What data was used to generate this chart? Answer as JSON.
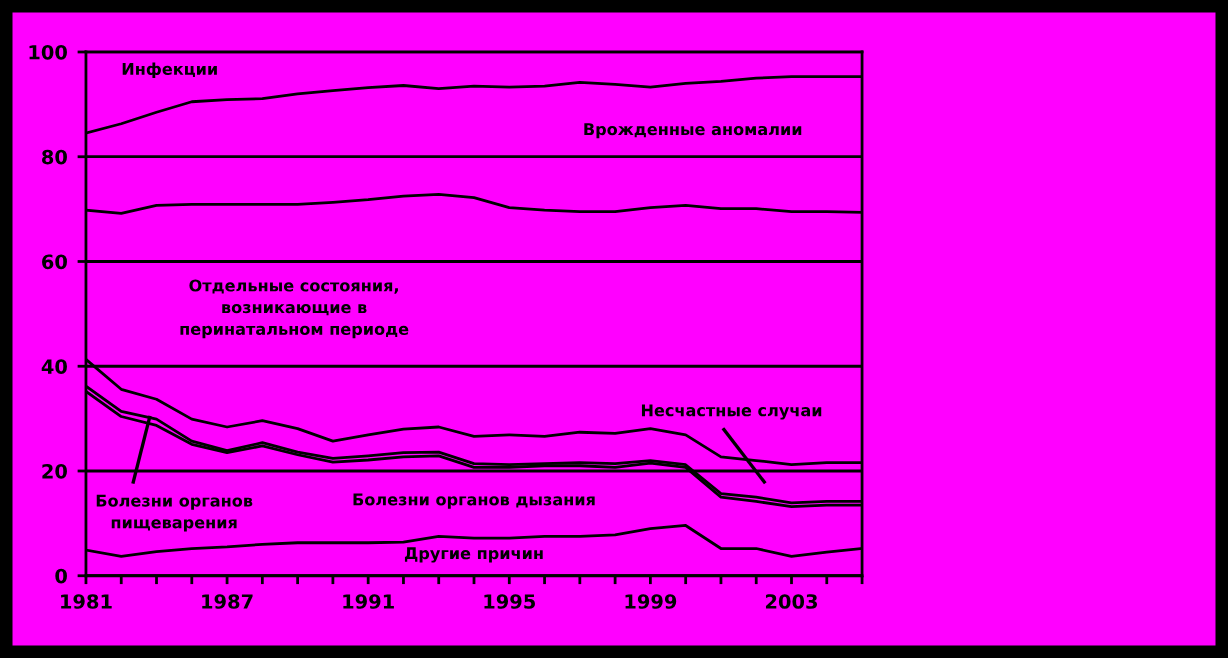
{
  "chart_data": {
    "type": "line",
    "categories": [
      "1981",
      null,
      null,
      null,
      "1987",
      null,
      null,
      null,
      "1991",
      null,
      null,
      null,
      "1995",
      null,
      null,
      null,
      "1999",
      null,
      null,
      null,
      "2003",
      null,
      null
    ],
    "series": [
      {
        "color": "#000000",
        "values": [
          84.5,
          86.3,
          88.5,
          90.5,
          90.9,
          91.1,
          92.0,
          92.6,
          93.2,
          93.6,
          93.0,
          93.5,
          93.3,
          93.5,
          94.2,
          93.8,
          93.3,
          94.0,
          94.4,
          95.0,
          95.3,
          95.3,
          95.3
        ]
      },
      {
        "color": "#000000",
        "values": [
          69.8,
          69.2,
          70.7,
          70.9,
          70.9,
          70.9,
          70.9,
          71.3,
          71.8,
          72.5,
          72.8,
          72.2,
          70.3,
          69.8,
          69.5,
          69.5,
          70.3,
          70.7,
          70.1,
          70.1,
          69.5,
          69.5,
          69.4
        ]
      },
      {
        "color": "#000000",
        "values": [
          41.3,
          35.6,
          33.7,
          29.9,
          28.4,
          29.6,
          28.1,
          25.7,
          26.9,
          28.0,
          28.4,
          26.6,
          26.9,
          26.6,
          27.4,
          27.2,
          28.1,
          26.9,
          22.7,
          22.0,
          21.2,
          21.6,
          21.6
        ]
      },
      {
        "color": "#000000",
        "values": [
          36.2,
          31.4,
          29.9,
          25.7,
          23.9,
          25.4,
          23.6,
          22.4,
          22.9,
          23.5,
          23.6,
          21.4,
          21.2,
          21.4,
          21.6,
          21.4,
          22.0,
          21.2,
          15.7,
          15.0,
          13.9,
          14.2,
          14.2
        ]
      },
      {
        "color": "#000000",
        "values": [
          35.2,
          30.4,
          28.7,
          25.1,
          23.5,
          24.8,
          23.1,
          21.7,
          22.1,
          22.7,
          22.9,
          20.7,
          20.7,
          21.0,
          21.0,
          20.7,
          21.5,
          20.7,
          15.0,
          14.2,
          13.2,
          13.5,
          13.5
        ]
      },
      {
        "color": "#000000",
        "values": [
          4.9,
          3.7,
          4.6,
          5.2,
          5.5,
          6.0,
          6.3,
          6.3,
          6.3,
          6.4,
          7.5,
          7.2,
          7.2,
          7.5,
          7.5,
          7.8,
          9.0,
          9.6,
          5.2,
          5.2,
          3.7,
          4.5,
          5.2
        ]
      }
    ],
    "ylim": [
      0,
      100
    ],
    "yticks": [
      0,
      20,
      40,
      60,
      80,
      100
    ],
    "grid": "y",
    "marker": "none",
    "line_style": "solid",
    "annotations": [
      "Инфекции",
      "Врожденные аномалии",
      "Отдельные состояния,\nвозникающие в\nперинатальном периоде",
      "Несчастные случаи",
      "Болезни органов\nпищеварения",
      "Болезни органов дызания",
      "Другие причин"
    ]
  }
}
